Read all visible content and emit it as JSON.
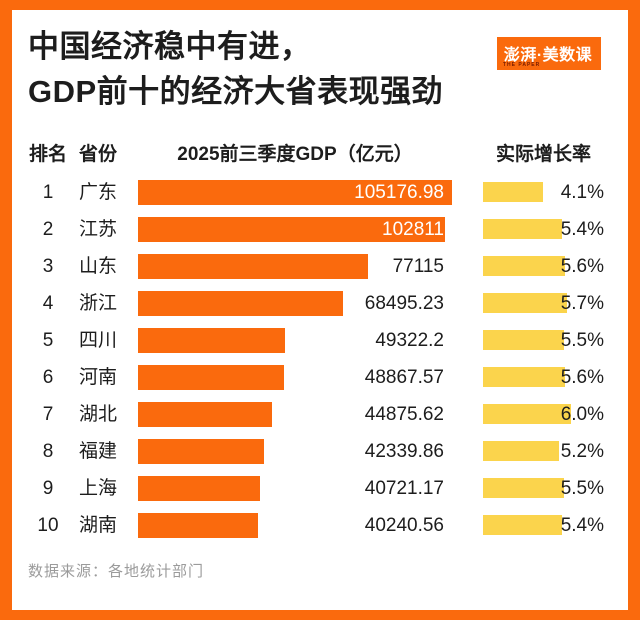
{
  "page": {
    "background": "#ffffff",
    "border_color": "#FA6A0D"
  },
  "header": {
    "title_line1": "中国经济稳中有进，",
    "title_line2": "GDP前十的经济大省表现强劲",
    "logo": {
      "text": "澎湃·美数课",
      "subtext": "THE PAPER",
      "background": "#FA6A0D"
    }
  },
  "table": {
    "columns": {
      "rank": "排名",
      "province": "省份",
      "gdp": "2025前三季度GDP（亿元）",
      "growth": "实际增长率"
    },
    "rows": [
      {
        "rank": "1",
        "province": "广东",
        "gdp": "105176.98",
        "gdp_value": 105176.98,
        "growth": "4.1%",
        "growth_value": 4.1,
        "label_inside": true
      },
      {
        "rank": "2",
        "province": "江苏",
        "gdp": "102811",
        "gdp_value": 102811,
        "growth": "5.4%",
        "growth_value": 5.4,
        "label_inside": true
      },
      {
        "rank": "3",
        "province": "山东",
        "gdp": "77115",
        "gdp_value": 77115,
        "growth": "5.6%",
        "growth_value": 5.6,
        "label_inside": false
      },
      {
        "rank": "4",
        "province": "浙江",
        "gdp": "68495.23",
        "gdp_value": 68495.23,
        "growth": "5.7%",
        "growth_value": 5.7,
        "label_inside": false
      },
      {
        "rank": "5",
        "province": "四川",
        "gdp": "49322.2",
        "gdp_value": 49322.2,
        "growth": "5.5%",
        "growth_value": 5.5,
        "label_inside": false
      },
      {
        "rank": "6",
        "province": "河南",
        "gdp": "48867.57",
        "gdp_value": 48867.57,
        "growth": "5.6%",
        "growth_value": 5.6,
        "label_inside": false
      },
      {
        "rank": "7",
        "province": "湖北",
        "gdp": "44875.62",
        "gdp_value": 44875.62,
        "growth": "6.0%",
        "growth_value": 6.0,
        "label_inside": false
      },
      {
        "rank": "8",
        "province": "福建",
        "gdp": "42339.86",
        "gdp_value": 42339.86,
        "growth": "5.2%",
        "growth_value": 5.2,
        "label_inside": false
      },
      {
        "rank": "9",
        "province": "上海",
        "gdp": "40721.17",
        "gdp_value": 40721.17,
        "growth": "5.5%",
        "growth_value": 5.5,
        "label_inside": false
      },
      {
        "rank": "10",
        "province": "湖南",
        "gdp": "40240.56",
        "gdp_value": 40240.56,
        "growth": "5.4%",
        "growth_value": 5.4,
        "label_inside": false
      }
    ]
  },
  "footer": {
    "source": "数据来源：各地统计部门"
  },
  "colors": {
    "bar_orange": "#FA6A0D",
    "bar_yellow": "#FBD44C",
    "text_dark": "#1d1d1d",
    "text_gray": "#9b9b9b",
    "inside_label": "#ffffff"
  },
  "chart_data": {
    "type": "bar",
    "title": "中国经济稳中有进，GDP前十的经济大省表现强劲",
    "categories": [
      "广东",
      "江苏",
      "山东",
      "浙江",
      "四川",
      "河南",
      "湖北",
      "福建",
      "上海",
      "湖南"
    ],
    "series": [
      {
        "name": "2025前三季度GDP（亿元）",
        "values": [
          105176.98,
          102811,
          77115,
          68495.23,
          49322.2,
          48867.57,
          44875.62,
          42339.86,
          40721.17,
          40240.56
        ],
        "color": "#FA6A0D"
      },
      {
        "name": "实际增长率",
        "values": [
          4.1,
          5.4,
          5.6,
          5.7,
          5.5,
          5.6,
          6.0,
          5.2,
          5.5,
          5.4
        ],
        "unit": "%",
        "color": "#FBD44C"
      }
    ],
    "orientation": "horizontal",
    "gdp_axis_max": 105176.98,
    "growth_axis_max": 6.0,
    "grid": false,
    "legend": false,
    "source_note": "数据来源：各地统计部门"
  }
}
